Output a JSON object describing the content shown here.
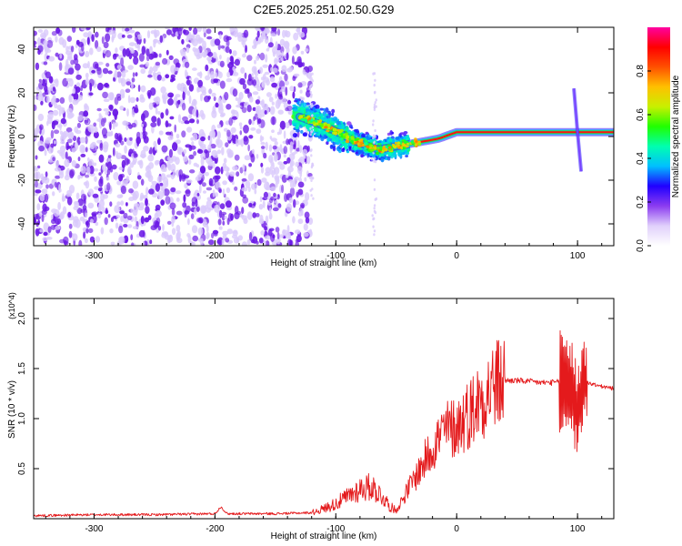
{
  "figure_title": "C2E5.2025.251.02.50.G29",
  "colors": {
    "snr_line": "#e41a1c",
    "axis": "#000000",
    "scatter_light": "#d9c9fb",
    "scatter_dark": "#6a17e6"
  },
  "chart_data": [
    {
      "id": "spectrogram",
      "type": "heatmap",
      "title": "C2E5.2025.251.02.50.G29",
      "xlabel": "Height of straight line (km)",
      "ylabel": "Frequency (Hz)",
      "xlim": [
        -350,
        130
      ],
      "ylim": [
        -50,
        50
      ],
      "x_ticks": [
        -300,
        -200,
        -100,
        0,
        100
      ],
      "x_tick_labels": [
        "-300",
        "-200",
        "-100",
        "0",
        "100"
      ],
      "y_ticks": [
        -40,
        -20,
        0,
        20,
        40
      ],
      "y_tick_labels": [
        "-40",
        "-20",
        "0",
        "20",
        "40"
      ],
      "colorbar": {
        "label": "Normalized spectral amplitude",
        "range": [
          0,
          1
        ],
        "ticks": [
          0.0,
          0.2,
          0.4,
          0.6,
          0.8
        ],
        "tick_labels": [
          "0.0",
          "0.2",
          "0.4",
          "0.6",
          "0.8"
        ],
        "colormap": [
          "#ffffff",
          "#e0d0fb",
          "#8b3cf0",
          "#2000ff",
          "#00bfff",
          "#00ffb0",
          "#20ff00",
          "#c8f000",
          "#ffc000",
          "#ff5000",
          "#ff0000",
          "#ff00a0"
        ]
      },
      "ridge": {
        "description": "dominant frequency track vs height",
        "height_km": [
          -130,
          -110,
          -95,
          -85,
          -75,
          -65,
          -55,
          -45,
          -35,
          -25,
          -15,
          -5,
          0,
          20,
          50,
          80,
          90,
          95,
          100,
          110,
          130
        ],
        "frequency_hz": [
          9,
          5,
          1,
          -2,
          -4,
          -6,
          -5,
          -4,
          -3,
          -2,
          -1,
          1,
          2,
          2,
          2,
          2,
          2,
          2,
          2,
          2,
          2
        ]
      },
      "noise_region_km": [
        -350,
        -120
      ],
      "spur": {
        "height_km": [
          97,
          100,
          103
        ],
        "frequency_hz": [
          22,
          2,
          -16
        ]
      }
    },
    {
      "id": "snr",
      "type": "line",
      "xlabel": "Height of straight line (km)",
      "ylabel": "SNR (10 * v/v)",
      "scale_label": "(x10^4)",
      "xlim": [
        -350,
        130
      ],
      "ylim": [
        0,
        2.2
      ],
      "x_ticks": [
        -300,
        -200,
        -100,
        0,
        100
      ],
      "x_tick_labels": [
        "-300",
        "-200",
        "-100",
        "0",
        "100"
      ],
      "y_ticks": [
        0.5,
        1.0,
        1.5,
        2.0
      ],
      "y_tick_labels": [
        "0.5",
        "1.0",
        "1.5",
        "2.0"
      ],
      "series": [
        {
          "name": "SNR",
          "x": [
            -350,
            -300,
            -250,
            -200,
            -195,
            -190,
            -150,
            -120,
            -110,
            -100,
            -90,
            -80,
            -70,
            -60,
            -55,
            -50,
            -40,
            -30,
            -20,
            -10,
            0,
            10,
            20,
            30,
            40,
            50,
            60,
            70,
            80,
            90,
            95,
            100,
            105,
            110,
            120,
            130
          ],
          "y": [
            0.03,
            0.04,
            0.04,
            0.05,
            0.12,
            0.05,
            0.05,
            0.06,
            0.1,
            0.15,
            0.22,
            0.3,
            0.32,
            0.2,
            0.12,
            0.08,
            0.3,
            0.5,
            0.72,
            0.88,
            0.92,
            1.05,
            1.2,
            1.32,
            1.38,
            1.38,
            1.37,
            1.36,
            1.36,
            1.37,
            1.3,
            1.05,
            1.4,
            1.35,
            1.32,
            1.3
          ]
        }
      ]
    }
  ]
}
